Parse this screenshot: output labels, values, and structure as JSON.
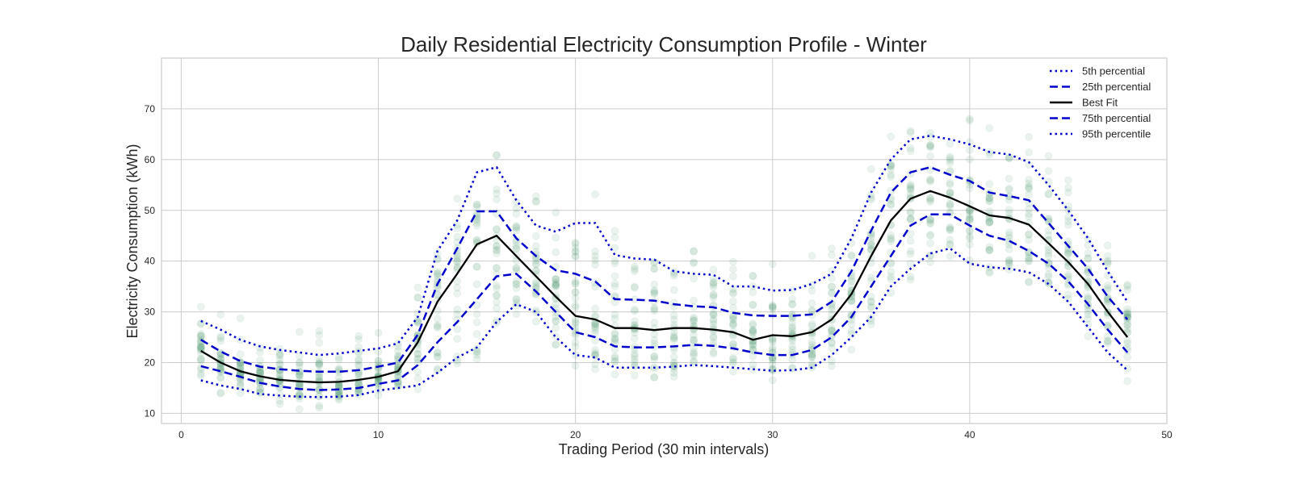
{
  "chart_data": {
    "type": "line",
    "title": "Daily Residential Electricity Consumption Profile - Winter",
    "xlabel": "Trading Period (30 min intervals)",
    "ylabel": "Electricity Consumption (kWh)",
    "xlim": [
      -1,
      50
    ],
    "ylim": [
      8,
      80
    ],
    "xticks": [
      0,
      10,
      20,
      30,
      40,
      50
    ],
    "yticks": [
      10,
      20,
      30,
      40,
      50,
      60,
      70
    ],
    "grid": true,
    "legend_position": "top-right",
    "x": [
      1,
      2,
      3,
      4,
      5,
      6,
      7,
      8,
      9,
      10,
      11,
      12,
      13,
      14,
      15,
      16,
      17,
      18,
      19,
      20,
      21,
      22,
      23,
      24,
      25,
      26,
      27,
      28,
      29,
      30,
      31,
      32,
      33,
      34,
      35,
      36,
      37,
      38,
      39,
      40,
      41,
      42,
      43,
      44,
      45,
      46,
      47,
      48
    ],
    "series": [
      {
        "name": "5th percential",
        "style": "dotted",
        "color": "#0000cc",
        "values": [
          16.5,
          15.5,
          14.8,
          13.8,
          13.5,
          13.3,
          13.2,
          13.3,
          13.6,
          14.5,
          15.0,
          15.5,
          18.0,
          21.0,
          23.0,
          28.0,
          31.5,
          30.0,
          25.0,
          21.5,
          21.0,
          19.0,
          19.0,
          19.0,
          19.2,
          19.5,
          19.3,
          19.0,
          18.7,
          18.4,
          18.5,
          19.0,
          21.5,
          25.0,
          29.0,
          35.0,
          38.5,
          41.5,
          42.5,
          39.5,
          38.8,
          38.5,
          37.8,
          35.5,
          32.0,
          27.0,
          22.0,
          18.5
        ]
      },
      {
        "name": "25th percential",
        "style": "dashed",
        "color": "#0000cc",
        "values": [
          19.3,
          18.3,
          17.2,
          16.0,
          15.3,
          14.8,
          14.6,
          14.7,
          15.0,
          15.8,
          16.5,
          19.5,
          24.0,
          28.0,
          32.5,
          37.0,
          37.5,
          34.0,
          30.0,
          26.0,
          25.0,
          23.2,
          23.0,
          23.0,
          23.2,
          23.5,
          23.3,
          22.8,
          22.0,
          21.5,
          21.5,
          22.5,
          25.0,
          29.0,
          35.0,
          41.0,
          47.0,
          49.2,
          49.2,
          47.0,
          45.0,
          44.0,
          42.0,
          39.5,
          36.0,
          31.5,
          26.5,
          22.0
        ]
      },
      {
        "name": "Best Fit",
        "style": "solid",
        "color": "#000000",
        "values": [
          22.3,
          20.0,
          18.3,
          17.3,
          16.6,
          16.3,
          16.1,
          16.2,
          16.6,
          17.2,
          18.3,
          24.0,
          32.0,
          37.5,
          43.3,
          45.0,
          41.0,
          37.0,
          33.0,
          29.2,
          28.5,
          26.8,
          26.8,
          26.4,
          26.8,
          26.8,
          26.5,
          26.0,
          24.5,
          25.4,
          25.2,
          26.0,
          28.5,
          33.5,
          41.0,
          48.0,
          52.3,
          53.8,
          52.5,
          50.8,
          49.0,
          48.5,
          47.2,
          43.5,
          39.8,
          35.5,
          30.0,
          25.0
        ]
      },
      {
        "name": "75th percential",
        "style": "dashed",
        "color": "#0000cc",
        "values": [
          24.5,
          22.2,
          20.3,
          19.2,
          18.7,
          18.4,
          18.2,
          18.2,
          18.5,
          19.2,
          20.0,
          25.5,
          35.5,
          42.5,
          49.8,
          49.8,
          44.5,
          41.0,
          38.2,
          37.5,
          36.0,
          32.5,
          32.4,
          32.2,
          31.5,
          31.1,
          30.9,
          29.8,
          29.3,
          29.2,
          29.2,
          29.5,
          32.0,
          38.0,
          46.0,
          53.5,
          57.5,
          58.5,
          57.0,
          55.8,
          53.5,
          52.8,
          52.0,
          47.5,
          43.0,
          38.5,
          33.0,
          28.5
        ]
      },
      {
        "name": "95th percentile",
        "style": "dotted",
        "color": "#0000cc",
        "values": [
          28.2,
          26.5,
          24.5,
          23.2,
          22.5,
          22.0,
          21.5,
          21.8,
          22.3,
          22.8,
          23.8,
          29.0,
          42.0,
          48.0,
          57.5,
          58.5,
          52.0,
          47.0,
          45.8,
          47.5,
          47.5,
          41.2,
          40.5,
          40.3,
          38.0,
          37.5,
          37.3,
          35.0,
          35.0,
          34.2,
          34.3,
          35.5,
          37.5,
          44.5,
          53.5,
          60.0,
          64.0,
          64.7,
          64.0,
          63.0,
          61.5,
          61.0,
          59.5,
          55.0,
          50.0,
          44.5,
          38.0,
          32.0
        ]
      }
    ]
  }
}
